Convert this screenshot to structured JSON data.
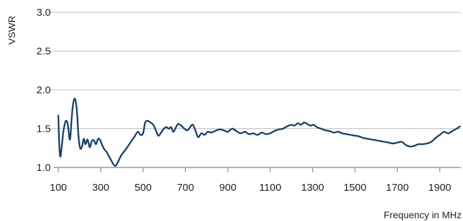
{
  "chart_data": {
    "type": "line",
    "xlabel": "Frequency in MHz",
    "ylabel": "VSWR",
    "xlim": [
      100,
      2000
    ],
    "ylim": [
      1.0,
      3.0
    ],
    "xticks": [
      100,
      300,
      500,
      700,
      900,
      1100,
      1300,
      1500,
      1700,
      1900
    ],
    "xtick_labels": [
      "100",
      "300",
      "500",
      "700",
      "900",
      "1100",
      "1300",
      "1500",
      "1700",
      "1900"
    ],
    "yticks": [
      1.0,
      1.5,
      2.0,
      2.5,
      3.0
    ],
    "ytick_labels": [
      "1.0",
      "1.5",
      "2.0",
      "2.5",
      "3.0"
    ],
    "grid": "horizontal",
    "colors": {
      "line": "#17406e",
      "grid": "#bdbdbd",
      "axis": "#999999"
    },
    "series": [
      {
        "x": [
          100,
          105,
          110,
          118,
          125,
          135,
          145,
          155,
          165,
          172,
          180,
          188,
          195,
          203,
          212,
          220,
          228,
          238,
          248,
          258,
          268,
          278,
          288,
          298,
          308,
          318,
          328,
          338,
          350,
          360,
          370,
          380,
          390,
          400,
          415,
          430,
          445,
          460,
          475,
          488,
          500,
          510,
          522,
          535,
          548,
          560,
          572,
          585,
          598,
          610,
          622,
          632,
          642,
          652,
          665,
          680,
          695,
          710,
          722,
          735,
          748,
          760,
          775,
          790,
          805,
          820,
          840,
          860,
          880,
          900,
          920,
          940,
          960,
          980,
          1000,
          1020,
          1040,
          1060,
          1080,
          1100,
          1120,
          1140,
          1160,
          1180,
          1200,
          1215,
          1230,
          1245,
          1260,
          1275,
          1290,
          1305,
          1320,
          1340,
          1360,
          1380,
          1400,
          1420,
          1440,
          1460,
          1480,
          1500,
          1520,
          1540,
          1560,
          1580,
          1600,
          1620,
          1640,
          1660,
          1680,
          1700,
          1720,
          1740,
          1760,
          1780,
          1800,
          1820,
          1840,
          1860,
          1880,
          1900,
          1920,
          1940,
          1960,
          1980,
          1995
        ],
        "y": [
          1.67,
          1.28,
          1.14,
          1.32,
          1.48,
          1.6,
          1.55,
          1.36,
          1.7,
          1.85,
          1.88,
          1.72,
          1.42,
          1.25,
          1.27,
          1.37,
          1.3,
          1.36,
          1.26,
          1.34,
          1.35,
          1.3,
          1.37,
          1.35,
          1.28,
          1.23,
          1.2,
          1.15,
          1.09,
          1.04,
          1.02,
          1.06,
          1.12,
          1.17,
          1.22,
          1.28,
          1.34,
          1.4,
          1.46,
          1.42,
          1.44,
          1.58,
          1.6,
          1.58,
          1.55,
          1.48,
          1.41,
          1.45,
          1.5,
          1.52,
          1.5,
          1.52,
          1.46,
          1.5,
          1.56,
          1.54,
          1.5,
          1.48,
          1.52,
          1.55,
          1.47,
          1.39,
          1.44,
          1.42,
          1.46,
          1.45,
          1.47,
          1.49,
          1.48,
          1.46,
          1.5,
          1.47,
          1.44,
          1.46,
          1.43,
          1.44,
          1.42,
          1.45,
          1.43,
          1.44,
          1.47,
          1.49,
          1.5,
          1.53,
          1.55,
          1.54,
          1.57,
          1.55,
          1.58,
          1.56,
          1.54,
          1.55,
          1.52,
          1.5,
          1.48,
          1.47,
          1.45,
          1.46,
          1.44,
          1.43,
          1.42,
          1.41,
          1.4,
          1.38,
          1.37,
          1.36,
          1.35,
          1.34,
          1.33,
          1.32,
          1.31,
          1.32,
          1.33,
          1.29,
          1.27,
          1.28,
          1.3,
          1.3,
          1.31,
          1.33,
          1.38,
          1.42,
          1.46,
          1.44,
          1.47,
          1.5,
          1.53
        ]
      }
    ]
  }
}
